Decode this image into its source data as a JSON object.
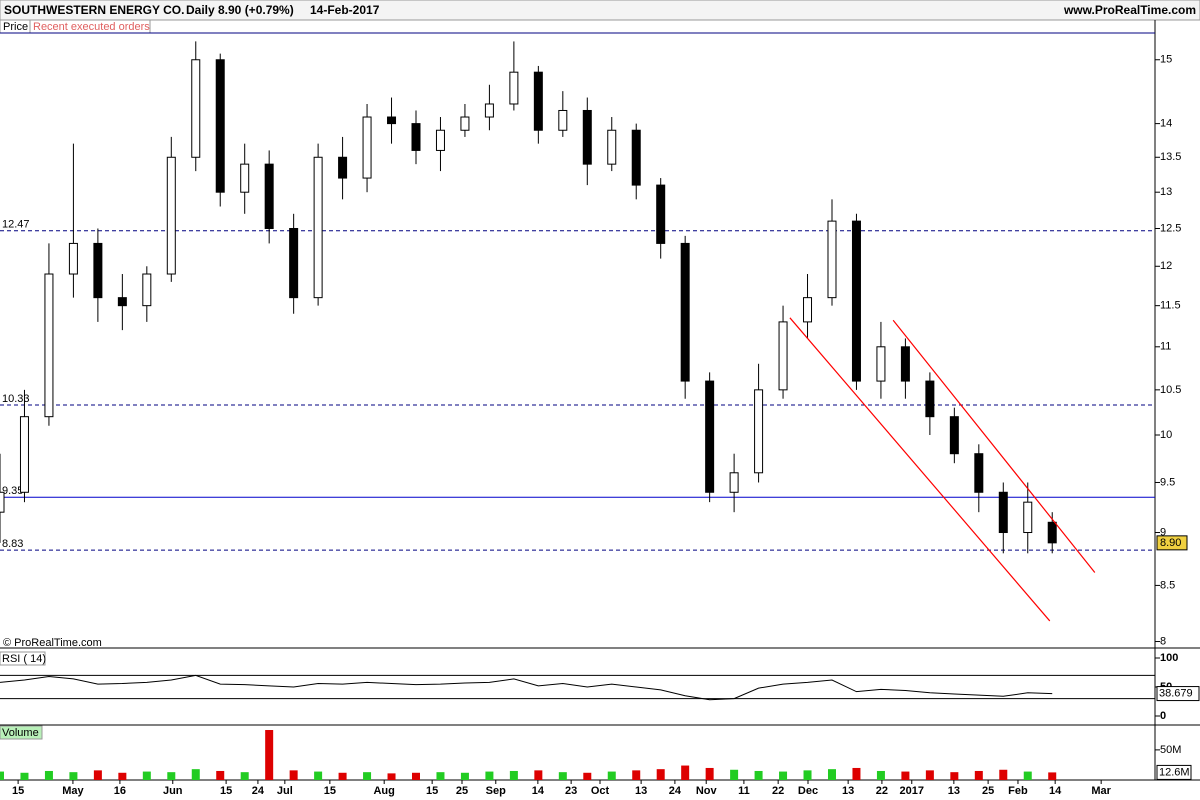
{
  "header": {
    "title": "SOUTHWESTERN ENERGY CO.",
    "period": "Daily",
    "quote": "8.90 (+0.79%)",
    "date": "14-Feb-2017",
    "site": "www.ProRealTime.com",
    "price_tab": "Price",
    "orders_tab": "Recent executed orders",
    "copyright": "© ProRealTime.com"
  },
  "chart_data": [
    {
      "type": "candlestick",
      "log_scale": true,
      "up_color": "#ffffff",
      "down_color": "#000000",
      "wick_color": "#000000",
      "xlim": [
        0,
        236
      ],
      "ylim": [
        7.97,
        15.44
      ],
      "yticks": [
        8,
        8.5,
        9,
        9.5,
        10,
        10.5,
        11,
        11.5,
        12,
        12.5,
        13,
        13.5,
        14,
        15
      ],
      "xticks": [
        {
          "value": 3.7,
          "label": "15"
        },
        {
          "value": 14.9,
          "label": "May"
        },
        {
          "value": 24.5,
          "label": "16"
        },
        {
          "value": 35.3,
          "label": "Jun"
        },
        {
          "value": 46.2,
          "label": "15"
        },
        {
          "value": 52.7,
          "label": "24"
        },
        {
          "value": 58.2,
          "label": "Jul"
        },
        {
          "value": 67.4,
          "label": "15"
        },
        {
          "value": 78.5,
          "label": "Aug"
        },
        {
          "value": 88.3,
          "label": "15"
        },
        {
          "value": 94.4,
          "label": "25"
        },
        {
          "value": 101.3,
          "label": "Sep"
        },
        {
          "value": 109.9,
          "label": "14"
        },
        {
          "value": 116.7,
          "label": "23"
        },
        {
          "value": 122.6,
          "label": "Oct"
        },
        {
          "value": 131,
          "label": "13"
        },
        {
          "value": 137.9,
          "label": "24"
        },
        {
          "value": 144.3,
          "label": "Nov"
        },
        {
          "value": 152,
          "label": "11"
        },
        {
          "value": 159,
          "label": "22"
        },
        {
          "value": 165.1,
          "label": "Dec"
        },
        {
          "value": 173.3,
          "label": "13"
        },
        {
          "value": 180.2,
          "label": "22"
        },
        {
          "value": 186.3,
          "label": "2017"
        },
        {
          "value": 194.9,
          "label": "13"
        },
        {
          "value": 201.9,
          "label": "25"
        },
        {
          "value": 208,
          "label": "Feb"
        },
        {
          "value": 215.6,
          "label": "14"
        },
        {
          "value": 225,
          "label": "Mar"
        }
      ],
      "x": [
        0,
        5,
        10,
        15,
        20,
        25,
        30,
        35,
        40,
        45,
        50,
        55,
        60,
        65,
        70,
        75,
        80,
        85,
        90,
        95,
        100,
        105,
        110,
        115,
        120,
        125,
        130,
        135,
        140,
        145,
        150,
        155,
        160,
        165,
        170,
        175,
        180,
        185,
        190,
        195,
        200,
        205,
        210,
        215
      ],
      "open": [
        9.2,
        9.4,
        10.2,
        11.9,
        12.3,
        11.6,
        11.5,
        11.9,
        13.5,
        15.0,
        13.0,
        13.4,
        12.5,
        11.6,
        13.5,
        13.2,
        14.1,
        14.0,
        13.6,
        13.9,
        14.1,
        14.3,
        14.8,
        13.9,
        14.2,
        13.4,
        13.9,
        13.1,
        12.3,
        10.6,
        9.4,
        9.6,
        10.5,
        11.3,
        11.6,
        12.6,
        10.6,
        11.0,
        10.6,
        10.2,
        9.8,
        9.4,
        9.0,
        9.1
      ],
      "high": [
        9.8,
        10.5,
        12.3,
        13.7,
        12.5,
        11.9,
        12.0,
        13.8,
        15.3,
        15.1,
        13.7,
        13.6,
        12.7,
        13.7,
        13.8,
        14.3,
        14.4,
        14.2,
        14.1,
        14.3,
        14.6,
        15.3,
        14.9,
        14.5,
        14.4,
        14.1,
        14.0,
        13.2,
        12.4,
        10.7,
        9.8,
        10.8,
        11.5,
        11.9,
        12.9,
        12.7,
        11.3,
        11.1,
        10.7,
        10.3,
        9.9,
        9.5,
        9.5,
        9.2
      ],
      "low": [
        8.9,
        9.3,
        10.1,
        11.6,
        11.3,
        11.2,
        11.3,
        11.8,
        13.3,
        12.8,
        12.7,
        12.3,
        11.4,
        11.5,
        12.9,
        13.0,
        13.7,
        13.4,
        13.3,
        13.8,
        13.9,
        14.2,
        13.7,
        13.8,
        13.1,
        13.3,
        12.9,
        12.1,
        10.4,
        9.3,
        9.2,
        9.5,
        10.4,
        11.1,
        11.5,
        10.5,
        10.4,
        10.4,
        10.0,
        9.7,
        9.2,
        8.8,
        8.8,
        8.8
      ],
      "close": [
        9.4,
        10.2,
        11.9,
        12.3,
        11.6,
        11.5,
        11.9,
        13.5,
        15.0,
        13.0,
        13.4,
        12.5,
        11.6,
        13.5,
        13.2,
        14.1,
        14.0,
        13.6,
        13.9,
        14.1,
        14.3,
        14.8,
        13.9,
        14.2,
        13.4,
        13.9,
        13.1,
        12.3,
        10.6,
        9.4,
        9.6,
        10.5,
        11.3,
        11.6,
        12.6,
        10.6,
        11.0,
        10.6,
        10.2,
        9.8,
        9.4,
        9.0,
        9.3,
        8.9
      ],
      "levels": [
        {
          "value": 12.47,
          "style": "dashed",
          "color": "#000080"
        },
        {
          "value": 10.33,
          "style": "dashed",
          "color": "#000080"
        },
        {
          "value": 9.35,
          "style": "solid",
          "color": "#0000cc"
        },
        {
          "value": 8.83,
          "style": "dashed",
          "color": "#000080"
        }
      ],
      "trendlines": [
        {
          "color": "#ff0000",
          "x": [
            161.4,
            214.5
          ],
          "y": [
            11.35,
            8.18
          ]
        },
        {
          "color": "#ff0000",
          "x": [
            182.5,
            223.7
          ],
          "y": [
            11.32,
            8.62
          ]
        }
      ],
      "last_value": 8.9,
      "last_label": "8.90",
      "last_color": "#f0d040"
    },
    {
      "type": "line",
      "title": "RSI ( 14)",
      "color": "#000000",
      "ylim": [
        0,
        100
      ],
      "yticks": [
        0,
        50,
        100
      ],
      "levels": [
        70,
        30
      ],
      "values": [
        58,
        62,
        68,
        64,
        55,
        56,
        58,
        62,
        70,
        55,
        54,
        52,
        50,
        56,
        55,
        58,
        56,
        54,
        55,
        57,
        58,
        64,
        52,
        56,
        50,
        55,
        50,
        45,
        35,
        28,
        30,
        48,
        55,
        58,
        62,
        42,
        46,
        44,
        40,
        38,
        36,
        34,
        40,
        38.679
      ],
      "last_label": "38.679"
    },
    {
      "type": "bar",
      "title": "Volume",
      "up_color": "#22cc22",
      "down_color": "#dd0000",
      "ylim": [
        0,
        88
      ],
      "yticks": [
        {
          "value": 50,
          "label": "50M"
        }
      ],
      "values": [
        14,
        12,
        15,
        13,
        16,
        12,
        14,
        13,
        18,
        15,
        13,
        83,
        16,
        14,
        12,
        13,
        11,
        12,
        13,
        12,
        14,
        15,
        16,
        13,
        12,
        14,
        16,
        18,
        24,
        20,
        17,
        15,
        14,
        16,
        18,
        20,
        15,
        14,
        16,
        13,
        15,
        17,
        14,
        12.6
      ],
      "last_label": "12.6M"
    }
  ]
}
